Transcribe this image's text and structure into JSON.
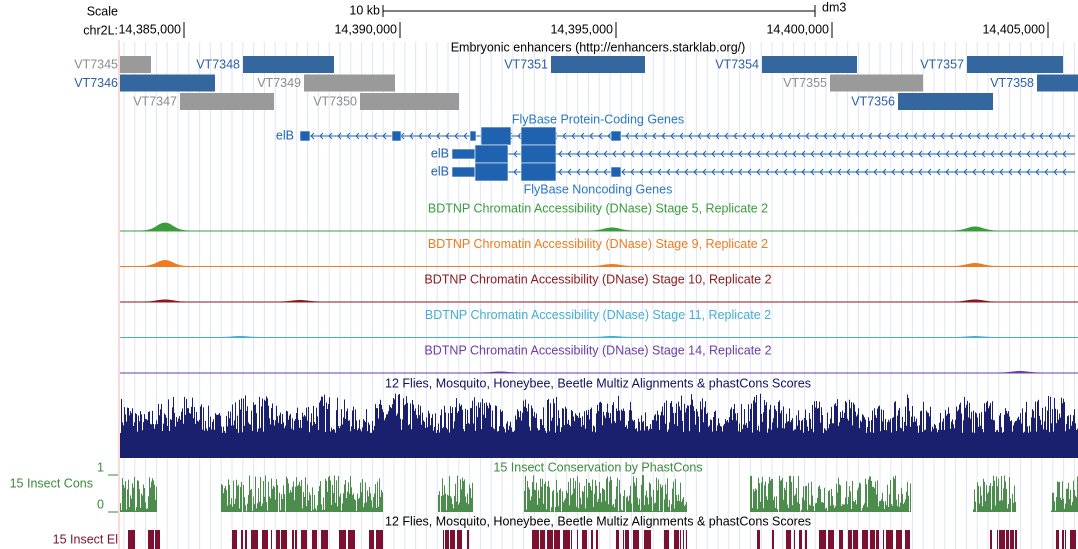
{
  "scale": {
    "label": "Scale",
    "chrom": "chr2L:",
    "span": "10 kb",
    "assembly": "dm3",
    "positions": [
      "14,385,000",
      "14,390,000",
      "14,395,000",
      "14,400,000",
      "14,405,000"
    ]
  },
  "enhancers": {
    "title": "Embryonic enhancers (http://enhancers.starklab.org/)",
    "items": [
      "VT7345",
      "VT7348",
      "VT7351",
      "VT7354",
      "VT7357",
      "VT7346",
      "VT7349",
      "VT7355",
      "VT7358",
      "VT7347",
      "VT7350",
      "VT7356"
    ]
  },
  "genes": {
    "title": "FlyBase Protein-Coding Genes",
    "names": [
      "elB",
      "elB",
      "elB"
    ]
  },
  "noncoding": {
    "title": "FlyBase Noncoding Genes"
  },
  "dnase": [
    "BDTNP Chromatin Accessibility (DNase) Stage 5, Replicate 2",
    "BDTNP Chromatin Accessibility (DNase) Stage 9, Replicate 2",
    "BDTNP Chromatin Accessibility (DNase) Stage 10, Replicate 2",
    "BDTNP Chromatin Accessibility (DNase) Stage 11, Replicate 2",
    "BDTNP Chromatin Accessibility (DNase) Stage 14, Replicate 2"
  ],
  "multiz": {
    "title": "12 Flies, Mosquito, Honeybee, Beetle Multiz Alignments & phastCons Scores"
  },
  "cons": {
    "title": "15 Insect Conservation by PhastCons",
    "label": "15 Insect Cons",
    "max": 1,
    "min": 0
  },
  "elements": {
    "title": "12 Flies, Mosquito, Honeybee, Beetle Multiz Alignments & phastCons Scores",
    "label": "15 Insect El"
  }
}
